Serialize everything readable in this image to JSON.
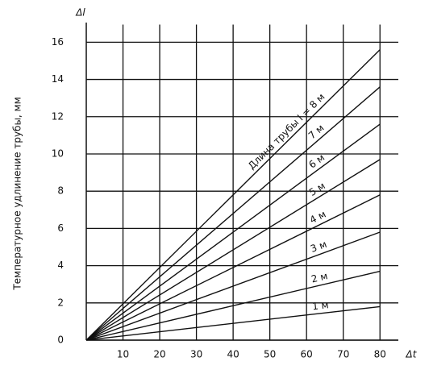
{
  "chart_data": {
    "type": "line",
    "y_label": "Температурное удлинение трубы, мм",
    "y_axis_symbol": "Δl",
    "x_axis_symbol": "Δt",
    "xlim": [
      0,
      85
    ],
    "ylim": [
      0,
      16.6
    ],
    "xticks": [
      10,
      20,
      30,
      40,
      50,
      60,
      70,
      80
    ],
    "yticks": [
      0,
      2,
      4,
      6,
      8,
      10,
      12,
      14,
      16
    ],
    "grid": true,
    "x": [
      0,
      80
    ],
    "series": [
      {
        "name": "1 м",
        "color": "#111111",
        "values": [
          0,
          1.8
        ]
      },
      {
        "name": "2 м",
        "color": "#111111",
        "values": [
          0,
          3.7
        ]
      },
      {
        "name": "3 м",
        "color": "#111111",
        "values": [
          0,
          5.8
        ]
      },
      {
        "name": "4 м",
        "color": "#111111",
        "values": [
          0,
          7.8
        ]
      },
      {
        "name": "5 м",
        "color": "#111111",
        "values": [
          0,
          9.7
        ]
      },
      {
        "name": "6 м",
        "color": "#111111",
        "values": [
          0,
          11.6
        ]
      },
      {
        "name": "7 м",
        "color": "#111111",
        "values": [
          0,
          13.6
        ]
      },
      {
        "name": "Длина трубы l = 8 м",
        "color": "#111111",
        "values": [
          0,
          15.6
        ]
      }
    ]
  }
}
